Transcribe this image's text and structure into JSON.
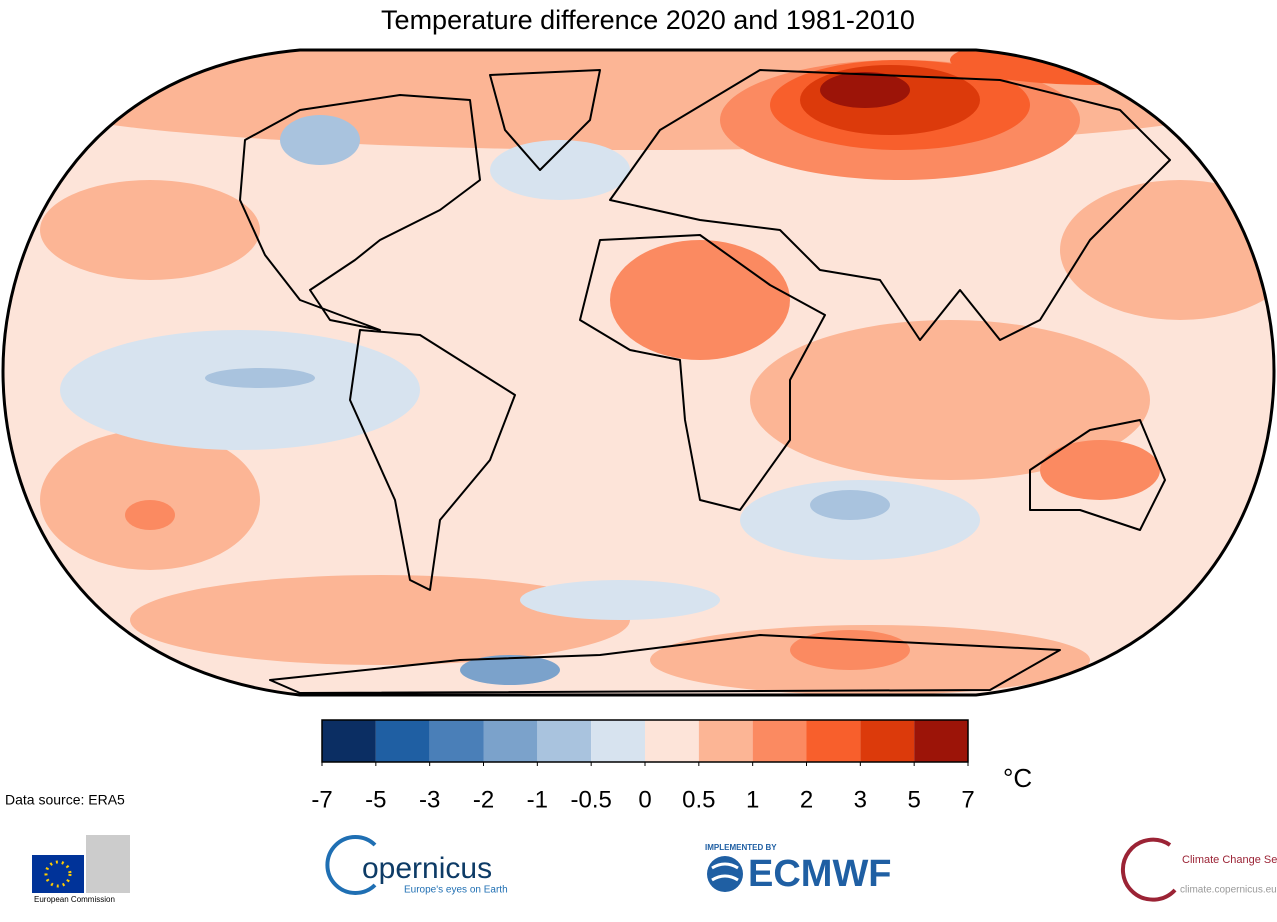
{
  "title": "Temperature difference 2020 and 1981-2010",
  "colorbar": {
    "ticks": [
      -7,
      -5,
      -3,
      -2,
      -1,
      -0.5,
      0,
      0.5,
      1,
      2,
      3,
      5,
      7
    ],
    "colors": [
      "#0b2e63",
      "#1f5fa3",
      "#4a7fb8",
      "#7ba2cb",
      "#a9c3de",
      "#d7e3ef",
      "#fde4d9",
      "#fcb595",
      "#fb8a61",
      "#f85f2c",
      "#dc3a0b",
      "#9c1408"
    ],
    "unit": "°C"
  },
  "source": "Data source: ERA5",
  "logos": {
    "eu": "European Commission",
    "copernicus": "opernicus",
    "copernicus_tagline": "Europe's eyes on Earth",
    "ecmwf_top": "IMPLEMENTED BY",
    "ecmwf": "ECMWF",
    "c3s": "Climate Change Service",
    "c3s_url": "climate.copernicus.eu"
  }
}
